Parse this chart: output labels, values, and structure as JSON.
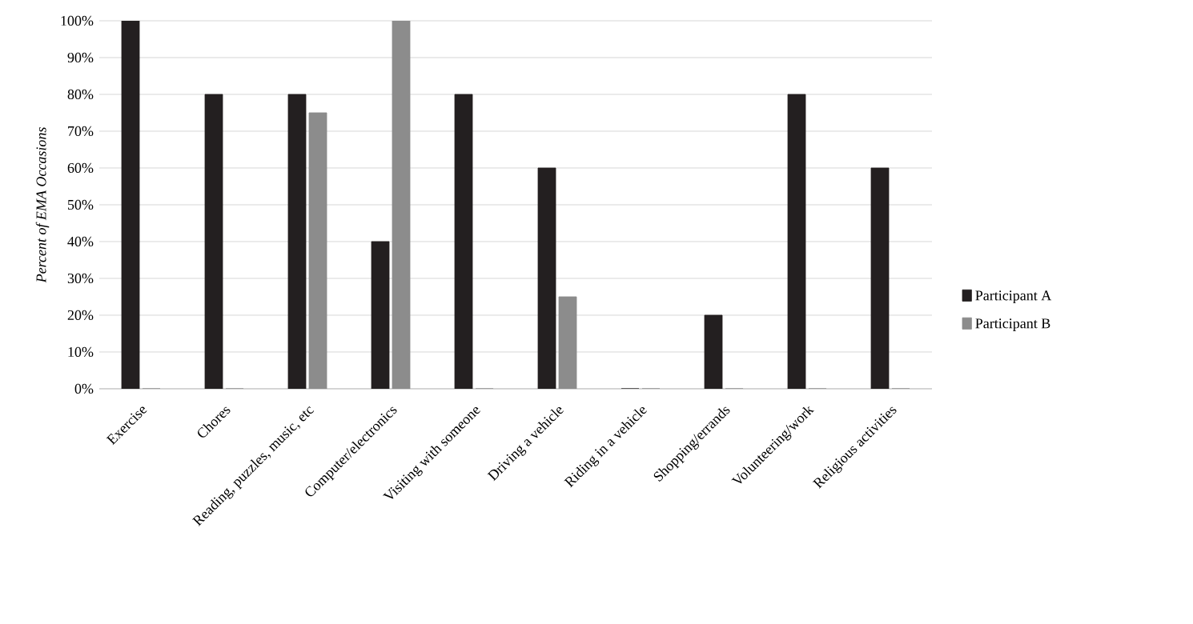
{
  "chart_data": {
    "type": "bar",
    "ylabel": "*Percent of EMA Occasions*",
    "categories": [
      "Exercise",
      "Chores",
      "Reading, puzzles, music, etc",
      "Computer/electronics",
      "Visiting with someone",
      "Driving a vehicle",
      "Riding in a vehicle",
      "Shopping/errands",
      "Volunteering/work",
      "Religious activities"
    ],
    "series": [
      {
        "name": "Participant A",
        "color": "#231f20",
        "values": [
          100,
          80,
          80,
          40,
          80,
          60,
          0,
          20,
          80,
          60
        ]
      },
      {
        "name": "Participant B",
        "color": "#8c8c8c",
        "values": [
          0,
          0,
          75,
          100,
          0,
          25,
          0,
          0,
          0,
          0
        ]
      }
    ],
    "ylim": [
      0,
      100
    ],
    "yticks": [
      {
        "value": 0,
        "label": "0%"
      },
      {
        "value": 10,
        "label": "10%"
      },
      {
        "value": 20,
        "label": "20%"
      },
      {
        "value": 30,
        "label": "30%"
      },
      {
        "value": 40,
        "label": "40%"
      },
      {
        "value": 50,
        "label": "50%"
      },
      {
        "value": 60,
        "label": "60%"
      },
      {
        "value": 70,
        "label": "70%"
      },
      {
        "value": 80,
        "label": "80%"
      },
      {
        "value": 90,
        "label": "90%"
      },
      {
        "value": 100,
        "label": "100%"
      }
    ],
    "grid": "y",
    "legend": "right"
  }
}
